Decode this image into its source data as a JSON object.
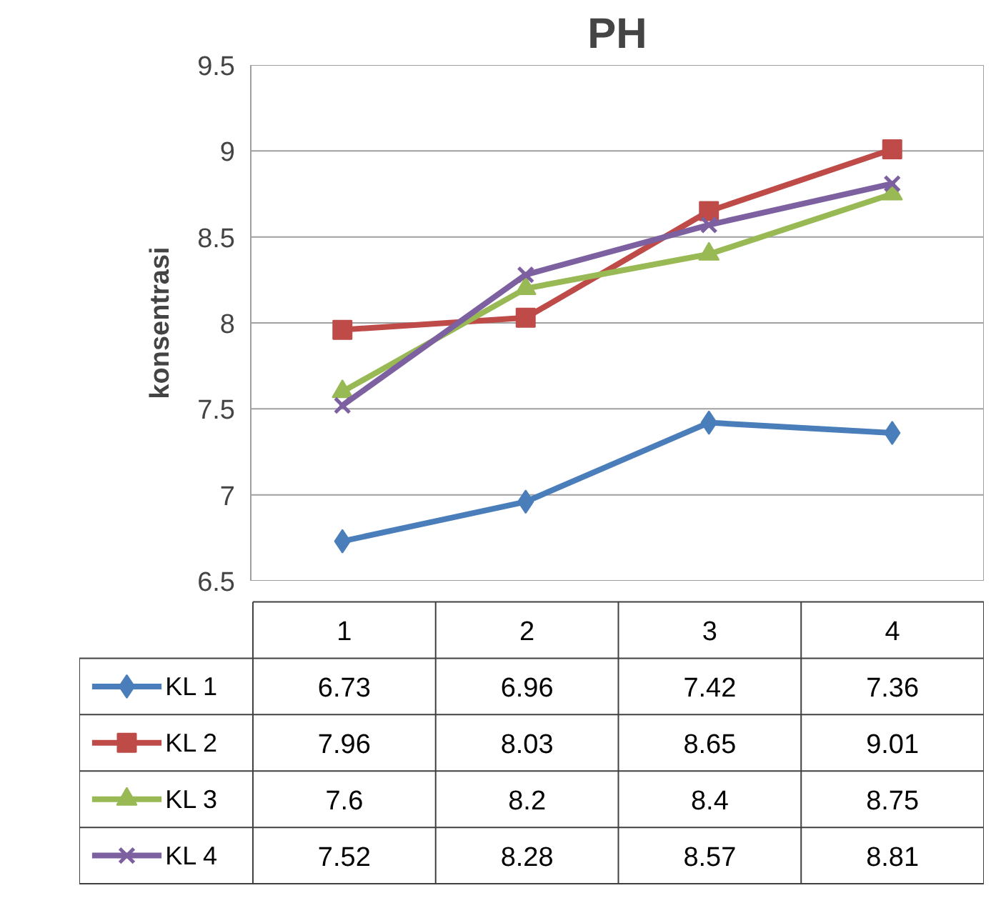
{
  "chart_data": {
    "type": "line",
    "title": "PH",
    "ylabel": "konsentrasi",
    "categories": [
      "1",
      "2",
      "3",
      "4"
    ],
    "series": [
      {
        "name": "KL 1",
        "color": "#4a7ebb",
        "marker": "diamond",
        "values": [
          6.73,
          6.96,
          7.42,
          7.36
        ]
      },
      {
        "name": "KL 2",
        "color": "#be4b48",
        "marker": "square",
        "values": [
          7.96,
          8.03,
          8.65,
          9.01
        ]
      },
      {
        "name": "KL 3",
        "color": "#98b954",
        "marker": "triangle",
        "values": [
          7.6,
          8.2,
          8.4,
          8.75
        ]
      },
      {
        "name": "KL 4",
        "color": "#7d60a0",
        "marker": "cross",
        "values": [
          7.52,
          8.28,
          8.57,
          8.81
        ]
      }
    ],
    "ylim": [
      6.5,
      9.5
    ],
    "yticks": [
      6.5,
      7,
      7.5,
      8,
      8.5,
      9,
      9.5
    ],
    "grid": "y",
    "data_labels": true,
    "legend": "bottom"
  }
}
